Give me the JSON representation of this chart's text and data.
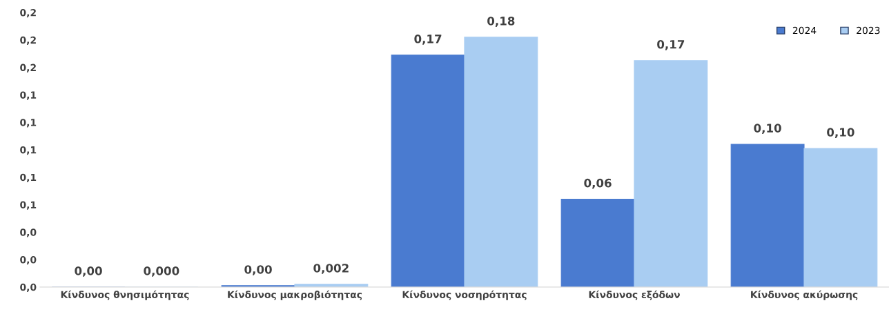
{
  "chart_data": {
    "type": "bar",
    "categories": [
      "Κίνδυνος θνησιμότητας",
      "Κίνδυνος μακροβιότητας",
      "Κίνδυνος νοσηρότητας",
      "Κίνδυνος εξόδων",
      "Κίνδυνος ακύρωσης"
    ],
    "series": [
      {
        "name": "2024",
        "color": "#4a7bd0",
        "values": [
          0.0,
          0.001,
          0.169,
          0.064,
          0.104
        ],
        "value_labels": [
          "0,00",
          "0,00",
          "0,17",
          "0,06",
          "0,10"
        ]
      },
      {
        "name": "2023",
        "color": "#a9cdf2",
        "values": [
          0.0,
          0.002,
          0.182,
          0.165,
          0.101
        ],
        "value_labels": [
          "0,000",
          "0,002",
          "0,18",
          "0,17",
          "0,10"
        ]
      }
    ],
    "ylim": [
      0,
      0.2
    ],
    "yticks": [
      {
        "value": 0,
        "label": "0,0"
      },
      {
        "value": 0.02,
        "label": "0,0"
      },
      {
        "value": 0.04,
        "label": "0,0"
      },
      {
        "value": 0.06,
        "label": "0,1"
      },
      {
        "value": 0.08,
        "label": "0,1"
      },
      {
        "value": 0.1,
        "label": "0,1"
      },
      {
        "value": 0.12,
        "label": "0,1"
      },
      {
        "value": 0.14,
        "label": "0,1"
      },
      {
        "value": 0.16,
        "label": "0,2"
      },
      {
        "value": 0.18,
        "label": "0,2"
      },
      {
        "value": 0.2,
        "label": "0,2"
      }
    ],
    "grid": false,
    "legend": "top right"
  }
}
